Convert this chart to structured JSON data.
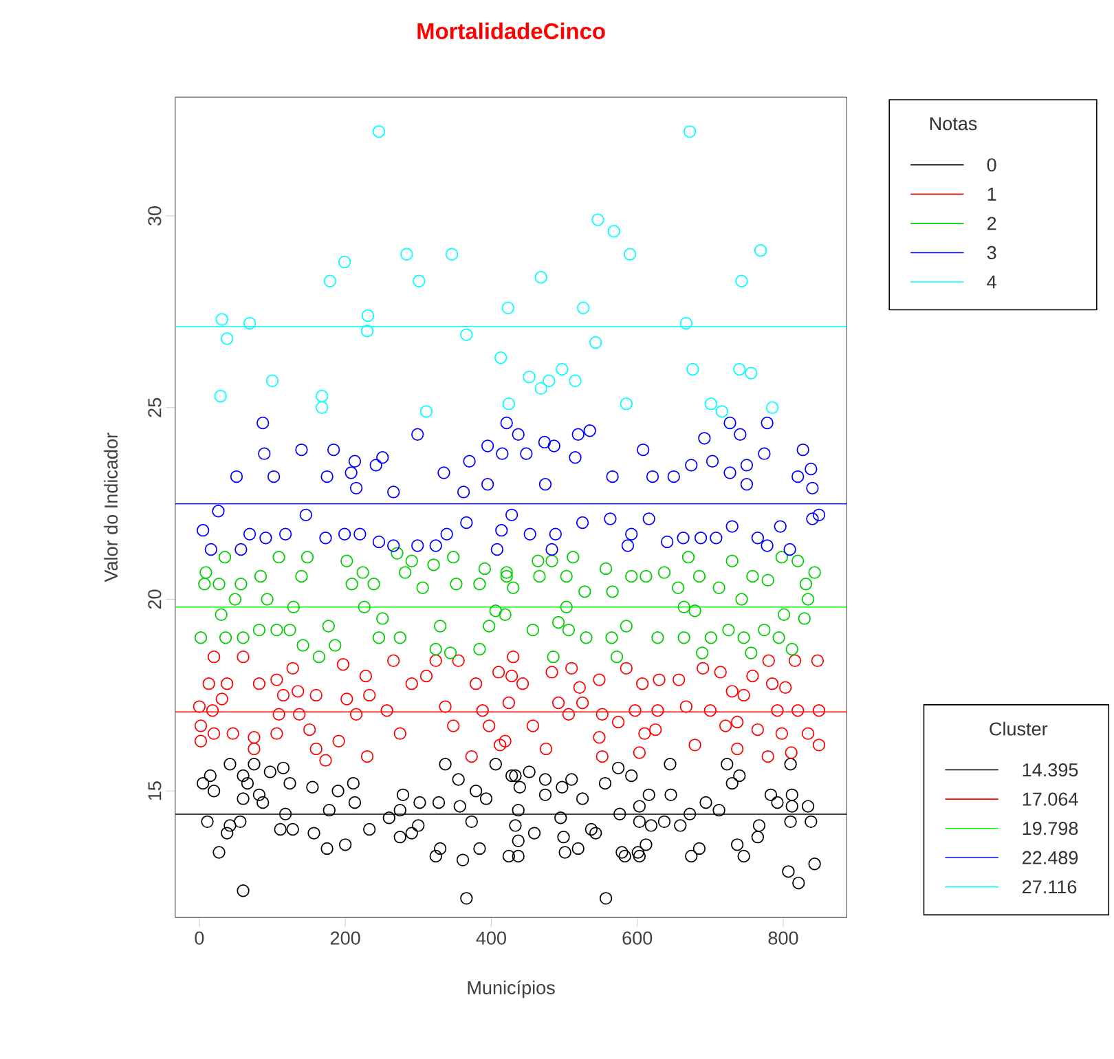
{
  "chart_data": {
    "type": "scatter",
    "title": "MortalidadeCinco",
    "xlabel": "Municípios",
    "ylabel": "Valor do Indicador",
    "legend_title": "Notas",
    "legend": "right",
    "marker": "circle",
    "xlim": [
      -33,
      887
    ],
    "ylim": [
      11.7,
      33.1
    ],
    "xticks": [
      0,
      200,
      400,
      600,
      800
    ],
    "yticks": [
      15,
      20,
      25,
      30
    ],
    "annotations": [
      "Cluster"
    ],
    "ref_lines": [
      {
        "axis": "y",
        "value": 14.395,
        "label": "14.395",
        "color": "#000000"
      },
      {
        "axis": "y",
        "value": 17.064,
        "label": "17.064",
        "color": "#ff0000"
      },
      {
        "axis": "y",
        "value": 19.798,
        "label": "19.798",
        "color": "#00ff00"
      },
      {
        "axis": "y",
        "value": 22.489,
        "label": "22.489",
        "color": "#0000ff"
      },
      {
        "axis": "y",
        "value": 27.116,
        "label": "27.116",
        "color": "#00ffff"
      }
    ],
    "series": [
      {
        "name": "0",
        "color": "#000000",
        "x": [
          42,
          75,
          15,
          5,
          20,
          60,
          97,
          115,
          66,
          82,
          124,
          87,
          60,
          11,
          42,
          38,
          27,
          56,
          60,
          118,
          111,
          128,
          155,
          157,
          175,
          190,
          200,
          211,
          213,
          178,
          233,
          260,
          275,
          279,
          275,
          291,
          302,
          300,
          328,
          330,
          324,
          337,
          355,
          357,
          361,
          366,
          379,
          393,
          384,
          373,
          406,
          428,
          424,
          433,
          452,
          439,
          437,
          433,
          437,
          437,
          474,
          474,
          497,
          510,
          525,
          556,
          574,
          592,
          495,
          459,
          499,
          501,
          519,
          537,
          543,
          557,
          576,
          579,
          583,
          601,
          603,
          612,
          603,
          619,
          616,
          603,
          637,
          646,
          645,
          659,
          672,
          694,
          712,
          674,
          685,
          723,
          740,
          730,
          737,
          746,
          767,
          765,
          783,
          792,
          810,
          812,
          812,
          810,
          834,
          838,
          843,
          807,
          821
        ],
        "values": [
          15.7,
          15.7,
          15.4,
          15.2,
          15.0,
          15.4,
          15.5,
          15.6,
          15.2,
          14.9,
          15.2,
          14.7,
          14.8,
          14.2,
          14.1,
          13.9,
          13.4,
          14.2,
          12.4,
          14.4,
          14.0,
          14.0,
          15.1,
          13.9,
          13.5,
          15.0,
          13.6,
          15.2,
          14.7,
          14.5,
          14.0,
          14.3,
          14.5,
          14.9,
          13.8,
          13.9,
          14.7,
          14.1,
          14.7,
          13.5,
          13.3,
          15.7,
          15.3,
          14.6,
          13.2,
          12.2,
          15.0,
          14.8,
          13.5,
          14.2,
          15.7,
          15.4,
          13.3,
          15.4,
          15.5,
          15.1,
          14.5,
          14.1,
          13.7,
          13.3,
          15.3,
          14.9,
          15.1,
          15.3,
          14.8,
          15.2,
          15.6,
          15.4,
          14.3,
          13.9,
          13.8,
          13.4,
          13.5,
          14.0,
          13.9,
          12.2,
          14.4,
          13.4,
          13.3,
          13.4,
          13.3,
          13.6,
          14.2,
          14.1,
          14.9,
          14.6,
          14.2,
          14.9,
          15.7,
          14.1,
          14.4,
          14.7,
          14.5,
          13.3,
          13.5,
          15.7,
          15.4,
          15.2,
          13.6,
          13.3,
          14.1,
          13.8,
          14.9,
          14.7,
          15.7,
          14.9,
          14.6,
          14.2,
          14.6,
          14.2,
          13.1,
          12.9,
          12.6
        ]
      },
      {
        "name": "1",
        "color": "#ff0000",
        "x": [
          20,
          60,
          13,
          38,
          82,
          106,
          128,
          0,
          31,
          18,
          2,
          20,
          46,
          2,
          75,
          106,
          75,
          109,
          115,
          135,
          160,
          137,
          151,
          160,
          173,
          191,
          197,
          202,
          228,
          215,
          233,
          230,
          257,
          266,
          275,
          291,
          311,
          337,
          324,
          355,
          348,
          373,
          379,
          388,
          397,
          412,
          410,
          430,
          428,
          443,
          424,
          457,
          419,
          475,
          483,
          510,
          521,
          548,
          492,
          525,
          506,
          552,
          574,
          597,
          548,
          552,
          603,
          610,
          625,
          585,
          607,
          630,
          657,
          690,
          714,
          628,
          667,
          700,
          721,
          737,
          765,
          737,
          679,
          779,
          730,
          746,
          758,
          785,
          803,
          792,
          820,
          849,
          834,
          798,
          849,
          811,
          847,
          816,
          780
        ],
        "values": [
          18.5,
          18.5,
          17.8,
          17.8,
          17.8,
          17.9,
          18.2,
          17.2,
          17.4,
          17.1,
          16.7,
          16.5,
          16.5,
          16.3,
          16.4,
          16.5,
          16.1,
          17.0,
          17.5,
          17.6,
          17.5,
          17.0,
          16.6,
          16.1,
          15.8,
          16.3,
          18.3,
          17.4,
          18.0,
          17.0,
          17.5,
          15.9,
          17.1,
          18.4,
          16.5,
          17.8,
          18.0,
          17.2,
          18.4,
          18.4,
          16.7,
          15.9,
          17.8,
          17.1,
          16.7,
          16.2,
          18.1,
          18.5,
          18.0,
          17.8,
          17.3,
          16.7,
          16.3,
          16.1,
          18.1,
          18.2,
          17.7,
          17.9,
          17.3,
          17.3,
          17.0,
          17.0,
          16.8,
          17.1,
          16.4,
          15.9,
          16.0,
          16.5,
          16.6,
          18.2,
          17.8,
          17.9,
          17.9,
          18.2,
          18.1,
          17.1,
          17.2,
          17.1,
          16.7,
          16.8,
          16.6,
          16.1,
          16.2,
          15.9,
          17.6,
          17.5,
          18.0,
          17.8,
          17.7,
          17.1,
          17.1,
          17.1,
          16.5,
          16.5,
          16.2,
          16.0,
          18.4,
          18.4,
          18.4
        ]
      },
      {
        "name": "2",
        "color": "#00cd00",
        "x": [
          35,
          9,
          7,
          27,
          57,
          49,
          84,
          109,
          140,
          148,
          93,
          129,
          30,
          2,
          36,
          60,
          82,
          106,
          124,
          142,
          164,
          186,
          177,
          202,
          224,
          239,
          209,
          226,
          251,
          246,
          275,
          271,
          291,
          282,
          321,
          306,
          330,
          324,
          348,
          352,
          384,
          391,
          406,
          397,
          384,
          421,
          344,
          421,
          430,
          464,
          483,
          466,
          503,
          528,
          512,
          566,
          557,
          592,
          612,
          637,
          670,
          685,
          656,
          664,
          679,
          712,
          743,
          730,
          758,
          779,
          798,
          820,
          831,
          843,
          834,
          801,
          829,
          419,
          457,
          492,
          506,
          530,
          565,
          585,
          628,
          664,
          701,
          725,
          746,
          774,
          794,
          756,
          812,
          485,
          572,
          689,
          503
        ],
        "values": [
          21.1,
          20.7,
          20.4,
          20.4,
          20.4,
          20.0,
          20.6,
          21.1,
          20.6,
          21.1,
          20.0,
          19.8,
          19.6,
          19.0,
          19.0,
          19.0,
          19.2,
          19.2,
          19.2,
          18.8,
          18.5,
          18.8,
          19.3,
          21.0,
          20.7,
          20.4,
          20.4,
          19.8,
          19.5,
          19.0,
          19.0,
          21.2,
          21.0,
          20.7,
          20.9,
          20.3,
          19.3,
          18.7,
          21.1,
          20.4,
          20.4,
          20.8,
          19.7,
          19.3,
          18.7,
          20.7,
          18.6,
          20.6,
          20.3,
          21.0,
          21.0,
          20.6,
          20.6,
          20.2,
          21.1,
          20.2,
          20.8,
          20.6,
          20.6,
          20.7,
          21.1,
          20.6,
          20.3,
          19.8,
          19.7,
          20.3,
          20.0,
          21.0,
          20.6,
          20.5,
          21.1,
          21.0,
          20.4,
          20.7,
          20.0,
          19.6,
          19.5,
          19.6,
          19.2,
          19.4,
          19.2,
          19.0,
          19.0,
          19.3,
          19.0,
          19.0,
          19.0,
          19.2,
          19.0,
          19.2,
          19.0,
          18.6,
          18.7,
          18.5,
          18.5,
          18.6,
          19.8
        ]
      },
      {
        "name": "3",
        "color": "#0000ff",
        "x": [
          87,
          89,
          140,
          184,
          51,
          102,
          175,
          213,
          208,
          215,
          242,
          251,
          299,
          395,
          421,
          415,
          335,
          370,
          362,
          266,
          395,
          26,
          437,
          473,
          486,
          448,
          519,
          535,
          515,
          608,
          474,
          621,
          650,
          674,
          703,
          692,
          727,
          741,
          778,
          774,
          750,
          727,
          750,
          827,
          838,
          820,
          840,
          566,
          5,
          16,
          57,
          69,
          91,
          118,
          146,
          173,
          199,
          220,
          246,
          266,
          299,
          324,
          339,
          366,
          408,
          414,
          428,
          453,
          483,
          488,
          525,
          563,
          587,
          592,
          616,
          641,
          663,
          687,
          708,
          730,
          765,
          778,
          796,
          809,
          840,
          849
        ],
        "values": [
          24.6,
          23.8,
          23.9,
          23.9,
          23.2,
          23.2,
          23.2,
          23.6,
          23.3,
          22.9,
          23.5,
          23.7,
          24.3,
          24.0,
          24.6,
          23.8,
          23.3,
          23.6,
          22.8,
          22.8,
          23.0,
          22.3,
          24.3,
          24.1,
          24.0,
          23.8,
          24.3,
          24.4,
          23.7,
          23.9,
          23.0,
          23.2,
          23.2,
          23.5,
          23.6,
          24.2,
          24.6,
          24.3,
          24.6,
          23.8,
          23.5,
          23.3,
          23.0,
          23.9,
          23.4,
          23.2,
          22.9,
          23.2,
          21.8,
          21.3,
          21.3,
          21.7,
          21.6,
          21.7,
          22.2,
          21.6,
          21.7,
          21.7,
          21.5,
          21.4,
          21.4,
          21.4,
          21.7,
          22.0,
          21.3,
          21.8,
          22.2,
          21.7,
          21.3,
          21.7,
          22.0,
          22.1,
          21.4,
          21.7,
          22.1,
          21.5,
          21.6,
          21.6,
          21.6,
          21.9,
          21.6,
          21.4,
          21.9,
          21.3,
          22.1,
          22.2
        ]
      },
      {
        "name": "4",
        "color": "#00ffff",
        "x": [
          246,
          199,
          284,
          346,
          179,
          301,
          31,
          69,
          38,
          231,
          230,
          366,
          423,
          413,
          100,
          29,
          168,
          168,
          311,
          424,
          672,
          546,
          568,
          590,
          769,
          468,
          743,
          526,
          667,
          543,
          676,
          740,
          756,
          452,
          479,
          468,
          497,
          515,
          585,
          701,
          716,
          785
        ],
        "values": [
          32.2,
          28.8,
          29.0,
          29.0,
          28.3,
          28.3,
          27.3,
          27.2,
          26.8,
          27.4,
          27.0,
          26.9,
          27.6,
          26.3,
          25.7,
          25.3,
          25.3,
          25.0,
          24.9,
          25.1,
          32.2,
          29.9,
          29.6,
          29.0,
          29.1,
          28.4,
          28.3,
          27.6,
          27.2,
          26.7,
          26.0,
          26.0,
          25.9,
          25.8,
          25.7,
          25.5,
          26.0,
          25.7,
          25.1,
          25.1,
          24.9,
          25.0
        ]
      }
    ]
  }
}
